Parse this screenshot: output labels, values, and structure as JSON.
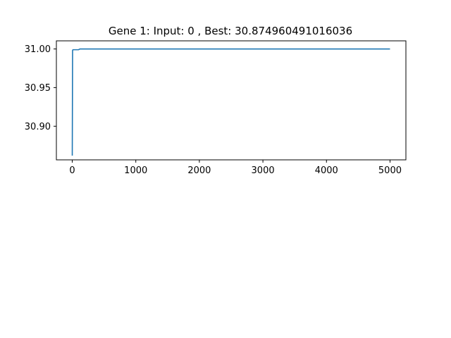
{
  "chart_data": {
    "type": "line",
    "title": "Gene 1: Input: 0 , Best: 30.874960491016036",
    "xlabel": "",
    "ylabel": "",
    "xlim": [
      -250,
      5250
    ],
    "ylim": [
      30.8565,
      31.0105
    ],
    "grid": false,
    "legend": "none",
    "x_ticks": [
      0,
      1000,
      2000,
      3000,
      4000,
      5000
    ],
    "x_tick_labels": [
      "0",
      "1000",
      "2000",
      "3000",
      "4000",
      "5000"
    ],
    "y_ticks": [
      30.9,
      30.95,
      31.0
    ],
    "y_tick_labels": [
      "30.90",
      "30.95",
      "31.00"
    ],
    "series": [
      {
        "color": "#1f77b4",
        "x": [
          0,
          5,
          10,
          100,
          120,
          5000
        ],
        "y": [
          30.862,
          30.998,
          30.999,
          30.999,
          31.0,
          31.0
        ]
      }
    ]
  }
}
